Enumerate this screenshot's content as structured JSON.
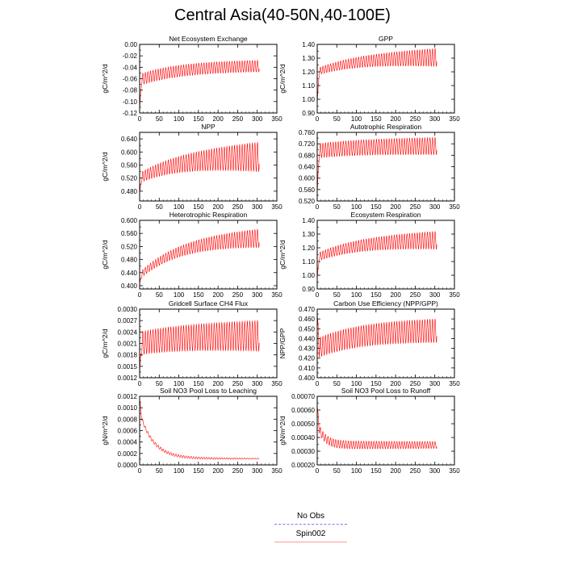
{
  "page": {
    "title": "Central Asia(40-50N,40-100E)"
  },
  "legend": {
    "items": [
      {
        "label": "No Obs",
        "color": "#7b7bff",
        "dash": true
      },
      {
        "label": "Spin002",
        "color": "#ff0000",
        "dash": false
      }
    ]
  },
  "chart_data": [
    {
      "type": "line",
      "title": "Net Ecosystem Exchange",
      "ylabel": "gC/m^2/d",
      "xlim": [
        0,
        350
      ],
      "ylim": [
        -0.12,
        0.0
      ],
      "yticks": [
        "-0.12",
        "-0.10",
        "-0.08",
        "-0.06",
        "-0.04",
        "-0.02",
        "0.00"
      ],
      "xticks": [
        "0",
        "50",
        "100",
        "150",
        "200",
        "250",
        "300",
        "350"
      ],
      "series": [
        {
          "color": "#ff0000",
          "x_range": [
            0,
            305
          ],
          "mean_start": -0.062,
          "mean_end": -0.038,
          "amp_start": 0.01,
          "amp_end": 0.01,
          "spike_start": -0.115,
          "shape": "exp"
        }
      ]
    },
    {
      "type": "line",
      "title": "GPP",
      "ylabel": "gC/m^2/d",
      "xlim": [
        0,
        350
      ],
      "ylim": [
        0.9,
        1.4
      ],
      "yticks": [
        "0.90",
        "1.00",
        "1.10",
        "1.20",
        "1.30",
        "1.40"
      ],
      "xticks": [
        "0",
        "50",
        "100",
        "150",
        "200",
        "250",
        "300",
        "350"
      ],
      "series": [
        {
          "color": "#ff0000",
          "x_range": [
            0,
            305
          ],
          "mean_start": 1.2,
          "mean_end": 1.305,
          "amp_start": 0.025,
          "amp_end": 0.065,
          "spike_start": 0.97,
          "shape": "exp"
        }
      ]
    },
    {
      "type": "line",
      "title": "NPP",
      "ylabel": "gC/m^2/d",
      "xlim": [
        0,
        350
      ],
      "ylim": [
        0.45,
        0.66
      ],
      "yticks": [
        "0.480",
        "0.520",
        "0.560",
        "0.600",
        "0.640"
      ],
      "xticks": [
        "0",
        "50",
        "100",
        "150",
        "200",
        "250",
        "300",
        "350"
      ],
      "series": [
        {
          "color": "#ff0000",
          "x_range": [
            0,
            305
          ],
          "mean_start": 0.52,
          "mean_end": 0.585,
          "amp_start": 0.015,
          "amp_end": 0.045,
          "spike_start": 0.47,
          "shape": "exp"
        }
      ]
    },
    {
      "type": "line",
      "title": "Autotrophic Respiration",
      "ylabel": "",
      "xlim": [
        0,
        350
      ],
      "ylim": [
        0.52,
        0.76
      ],
      "yticks": [
        "0.520",
        "0.560",
        "0.600",
        "0.640",
        "0.680",
        "0.720",
        "0.760"
      ],
      "xticks": [
        "0",
        "50",
        "100",
        "150",
        "200",
        "250",
        "300",
        "350"
      ],
      "series": [
        {
          "color": "#ff0000",
          "x_range": [
            0,
            305
          ],
          "mean_start": 0.695,
          "mean_end": 0.712,
          "amp_start": 0.025,
          "amp_end": 0.03,
          "spike_start": 0.54,
          "shape": "exp"
        }
      ]
    },
    {
      "type": "line",
      "title": "Heterotrophic Respiration",
      "ylabel": "gC/m^2/d",
      "xlim": [
        0,
        350
      ],
      "ylim": [
        0.39,
        0.6
      ],
      "yticks": [
        "0.400",
        "0.440",
        "0.480",
        "0.520",
        "0.560",
        "0.600"
      ],
      "xticks": [
        "0",
        "50",
        "100",
        "150",
        "200",
        "250",
        "300",
        "350"
      ],
      "series": [
        {
          "color": "#ff0000",
          "x_range": [
            0,
            305
          ],
          "mean_start": 0.43,
          "mean_end": 0.545,
          "amp_start": 0.01,
          "amp_end": 0.028,
          "spike_start": 0.405,
          "shape": "exp"
        }
      ]
    },
    {
      "type": "line",
      "title": "Ecosystem Respiration",
      "ylabel": "gC/m^2/d",
      "xlim": [
        0,
        350
      ],
      "ylim": [
        0.9,
        1.4
      ],
      "yticks": [
        "0.90",
        "1.00",
        "1.10",
        "1.20",
        "1.30",
        "1.40"
      ],
      "xticks": [
        "0",
        "50",
        "100",
        "150",
        "200",
        "250",
        "300",
        "350"
      ],
      "series": [
        {
          "color": "#ff0000",
          "x_range": [
            0,
            305
          ],
          "mean_start": 1.13,
          "mean_end": 1.255,
          "amp_start": 0.03,
          "amp_end": 0.065,
          "spike_start": 0.97,
          "shape": "exp"
        }
      ]
    },
    {
      "type": "line",
      "title": "Gridcell Surface CH4 Flux",
      "ylabel": "gC/m^2/d",
      "xlim": [
        0,
        350
      ],
      "ylim": [
        0.0012,
        0.003
      ],
      "yticks": [
        "0.0012",
        "0.0015",
        "0.0018",
        "0.0021",
        "0.0024",
        "0.0027",
        "0.0030"
      ],
      "xticks": [
        "0",
        "50",
        "100",
        "150",
        "200",
        "250",
        "300",
        "350"
      ],
      "series": [
        {
          "color": "#ff0000",
          "x_range": [
            0,
            305
          ],
          "mean_start": 0.0021,
          "mean_end": 0.0023,
          "amp_start": 0.0003,
          "amp_end": 0.0004,
          "spike_start": 0.0013,
          "shape": "exp"
        }
      ]
    },
    {
      "type": "line",
      "title": "Carbon Use Efficiency (NPP/GPP)",
      "ylabel": "NPP/GPP",
      "xlim": [
        0,
        350
      ],
      "ylim": [
        0.4,
        0.47
      ],
      "yticks": [
        "0.400",
        "0.410",
        "0.420",
        "0.430",
        "0.440",
        "0.450",
        "0.460",
        "0.470"
      ],
      "xticks": [
        "0",
        "50",
        "100",
        "150",
        "200",
        "250",
        "300",
        "350"
      ],
      "series": [
        {
          "color": "#ff0000",
          "x_range": [
            0,
            305
          ],
          "mean_start": 0.43,
          "mean_end": 0.448,
          "amp_start": 0.01,
          "amp_end": 0.012,
          "spike_start": 0.466,
          "shape": "exp"
        }
      ]
    },
    {
      "type": "line",
      "title": "Soil NO3 Pool Loss to Leaching",
      "ylabel": "gN/m^2/d",
      "xlim": [
        0,
        350
      ],
      "ylim": [
        0.0,
        0.0012
      ],
      "yticks": [
        "0.0000",
        "0.0002",
        "0.0004",
        "0.0006",
        "0.0008",
        "0.0010",
        "0.0012"
      ],
      "xticks": [
        "0",
        "50",
        "100",
        "150",
        "200",
        "250",
        "300",
        "350"
      ],
      "series": [
        {
          "color": "#ff0000",
          "x_range": [
            0,
            305
          ],
          "mean_start": 0.00092,
          "mean_end": 0.00011,
          "amp_start": 3e-05,
          "amp_end": 6e-06,
          "spike_start": 0.00115,
          "shape": "decay"
        }
      ]
    },
    {
      "type": "line",
      "title": "Soil NO3 Pool Loss to Runoff",
      "ylabel": "gN/m^2/d",
      "xlim": [
        0,
        350
      ],
      "ylim": [
        0.0002,
        0.0007
      ],
      "yticks": [
        "0.00020",
        "0.00030",
        "0.00040",
        "0.00050",
        "0.00060",
        "0.00070"
      ],
      "xticks": [
        "0",
        "50",
        "100",
        "150",
        "200",
        "250",
        "300",
        "350"
      ],
      "series": [
        {
          "color": "#ff0000",
          "x_range": [
            0,
            305
          ],
          "mean_start": 0.0005,
          "mean_end": 0.000345,
          "amp_start": 3e-05,
          "amp_end": 2.5e-05,
          "spike_start": 0.00063,
          "shape": "decayfast"
        }
      ]
    }
  ]
}
